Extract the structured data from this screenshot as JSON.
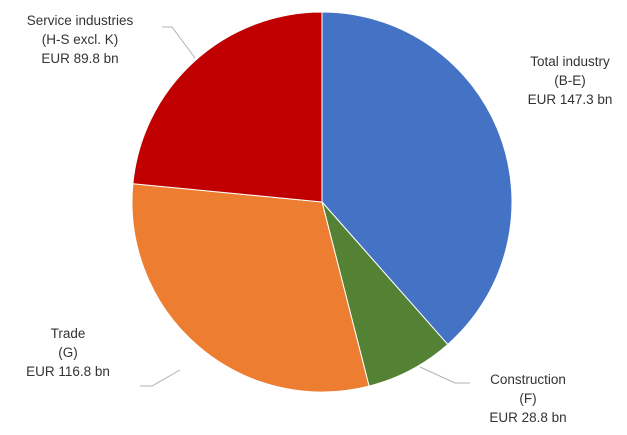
{
  "chart_data": {
    "type": "pie",
    "title": "",
    "unit": "EUR bn",
    "slices": [
      {
        "lines": [
          "Total industry",
          "(B-E)",
          "EUR 147.3 bn"
        ],
        "value": 147.3,
        "color": "#4472C4"
      },
      {
        "lines": [
          "Construction",
          "(F)",
          "EUR 28.8 bn"
        ],
        "value": 28.8,
        "color": "#548235"
      },
      {
        "lines": [
          "Trade",
          "(G)",
          "EUR 116.8 bn"
        ],
        "value": 116.8,
        "color": "#ED7D31"
      },
      {
        "lines": [
          "Service industries",
          "(H-S excl. K)",
          "EUR  89.8 bn"
        ],
        "value": 89.8,
        "color": "#C00000"
      }
    ],
    "start_angle_deg": 0,
    "direction": "clockwise",
    "legend": "none"
  }
}
